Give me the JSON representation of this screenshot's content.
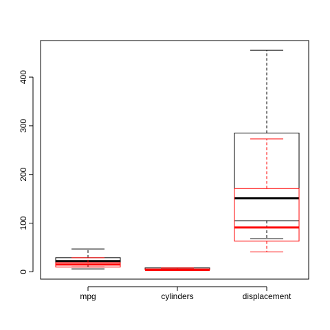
{
  "chart_data": {
    "type": "boxplot",
    "title": "",
    "xlabel": "",
    "ylabel": "",
    "categories": [
      "mpg",
      "cylinders",
      "displacement"
    ],
    "y_ticks": [
      0,
      100,
      200,
      300,
      400
    ],
    "ylim": [
      -15,
      475
    ],
    "series": [
      {
        "color": "#000000",
        "boxes": [
          {
            "category": "mpg",
            "whisker_low": 6,
            "q1": 16,
            "median": 22,
            "q3": 29,
            "whisker_high": 47
          },
          {
            "category": "cylinders",
            "whisker_low": 3,
            "q1": 4,
            "median": 4,
            "q3": 8,
            "whisker_high": 8
          },
          {
            "category": "displacement",
            "whisker_low": 68,
            "q1": 105,
            "median": 151,
            "q3": 285,
            "whisker_high": 455
          }
        ]
      },
      {
        "color": "#ff0000",
        "boxes": [
          {
            "category": "mpg",
            "whisker_low": 10,
            "q1": 10,
            "median": 15,
            "q3": 19,
            "whisker_high": 29
          },
          {
            "category": "cylinders",
            "whisker_low": 3,
            "q1": 4,
            "median": 4,
            "q3": 6,
            "whisker_high": 8
          },
          {
            "category": "displacement",
            "whisker_low": 41,
            "q1": 63,
            "median": 91,
            "q3": 171,
            "whisker_high": 273
          }
        ]
      }
    ],
    "grid": false,
    "legend": "none"
  }
}
